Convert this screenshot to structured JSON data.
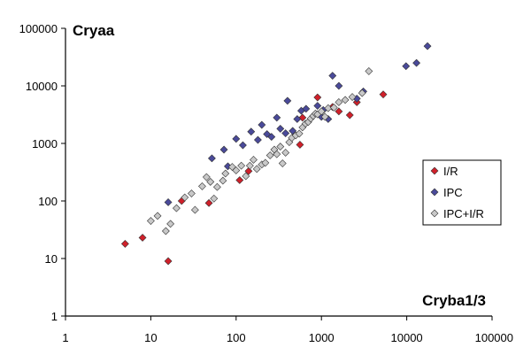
{
  "chart_data": {
    "type": "scatter",
    "xscale": "log",
    "yscale": "log",
    "xlabel": "Cryba1/3",
    "ylabel": "Cryaa",
    "xlim": [
      1,
      100000
    ],
    "ylim": [
      1,
      100000
    ],
    "x_ticks": [
      "1",
      "10",
      "100",
      "1000",
      "10000",
      "100000"
    ],
    "y_ticks": [
      "1",
      "10",
      "100",
      "1000",
      "10000",
      "100000"
    ],
    "grid": false,
    "legend_position": "right",
    "series": [
      {
        "name": "I/R",
        "color": "#d0202a",
        "points": [
          [
            5,
            18
          ],
          [
            8,
            23
          ],
          [
            16,
            9
          ],
          [
            23,
            100
          ],
          [
            48,
            92
          ],
          [
            110,
            230
          ],
          [
            140,
            330
          ],
          [
            560,
            950
          ],
          [
            600,
            2800
          ],
          [
            900,
            6300
          ],
          [
            1350,
            4300
          ],
          [
            1600,
            3600
          ],
          [
            2150,
            3100
          ],
          [
            2600,
            5200
          ],
          [
            5300,
            7100
          ]
        ]
      },
      {
        "name": "IPC",
        "color": "#4a4a9a",
        "points": [
          [
            16,
            95
          ],
          [
            52,
            550
          ],
          [
            72,
            780
          ],
          [
            80,
            400
          ],
          [
            100,
            1200
          ],
          [
            120,
            930
          ],
          [
            150,
            1600
          ],
          [
            180,
            1150
          ],
          [
            200,
            2100
          ],
          [
            230,
            1450
          ],
          [
            260,
            1300
          ],
          [
            300,
            2800
          ],
          [
            330,
            1800
          ],
          [
            380,
            1500
          ],
          [
            400,
            5500
          ],
          [
            460,
            1650
          ],
          [
            520,
            2650
          ],
          [
            580,
            3700
          ],
          [
            660,
            4000
          ],
          [
            900,
            4500
          ],
          [
            1000,
            2900
          ],
          [
            1050,
            3800
          ],
          [
            1200,
            2650
          ],
          [
            1350,
            15000
          ],
          [
            1600,
            10000
          ],
          [
            2600,
            6000
          ],
          [
            3100,
            8000
          ],
          [
            9800,
            22000
          ],
          [
            13000,
            25000
          ],
          [
            17500,
            49000
          ]
        ]
      },
      {
        "name": "IPC+I/R",
        "color": "#c8c8c8",
        "points": [
          [
            10,
            45
          ],
          [
            12,
            55
          ],
          [
            15,
            30
          ],
          [
            17,
            40
          ],
          [
            20,
            75
          ],
          [
            25,
            115
          ],
          [
            30,
            135
          ],
          [
            33,
            70
          ],
          [
            40,
            180
          ],
          [
            45,
            260
          ],
          [
            50,
            215
          ],
          [
            55,
            110
          ],
          [
            60,
            175
          ],
          [
            70,
            225
          ],
          [
            75,
            300
          ],
          [
            90,
            390
          ],
          [
            100,
            340
          ],
          [
            115,
            410
          ],
          [
            130,
            270
          ],
          [
            145,
            410
          ],
          [
            160,
            520
          ],
          [
            175,
            360
          ],
          [
            200,
            430
          ],
          [
            220,
            460
          ],
          [
            250,
            620
          ],
          [
            280,
            780
          ],
          [
            300,
            650
          ],
          [
            330,
            880
          ],
          [
            350,
            450
          ],
          [
            380,
            690
          ],
          [
            420,
            1050
          ],
          [
            450,
            1250
          ],
          [
            500,
            1380
          ],
          [
            550,
            1480
          ],
          [
            600,
            1900
          ],
          [
            650,
            2200
          ],
          [
            700,
            2350
          ],
          [
            750,
            2700
          ],
          [
            800,
            3000
          ],
          [
            850,
            3300
          ],
          [
            900,
            3200
          ],
          [
            1000,
            3600
          ],
          [
            1100,
            2900
          ],
          [
            1200,
            4100
          ],
          [
            1400,
            4200
          ],
          [
            1600,
            5200
          ],
          [
            1900,
            5700
          ],
          [
            2300,
            6400
          ],
          [
            3000,
            7500
          ],
          [
            3600,
            18000
          ]
        ]
      }
    ]
  }
}
